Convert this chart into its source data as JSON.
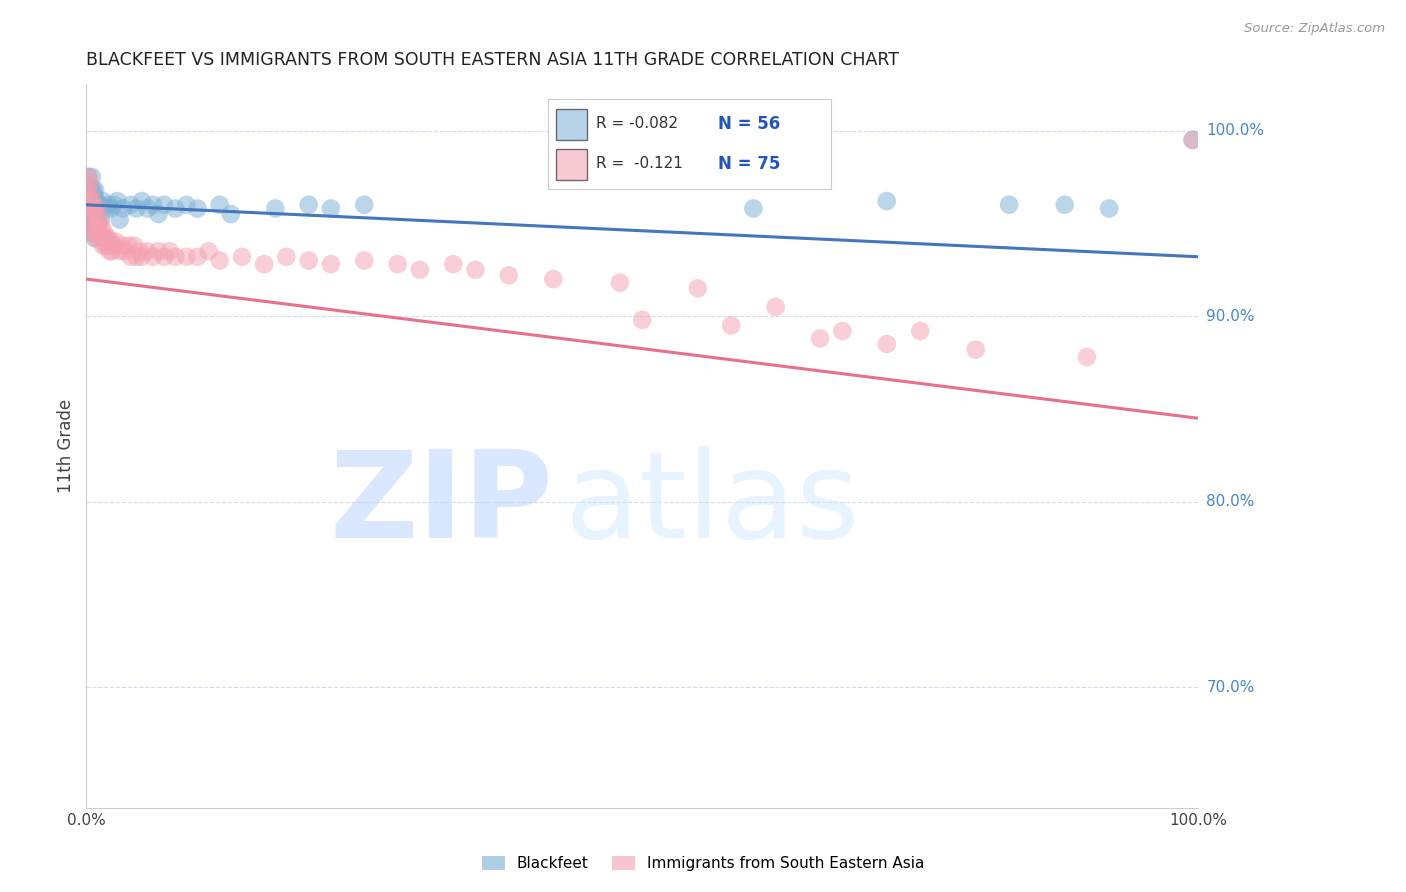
{
  "title": "BLACKFEET VS IMMIGRANTS FROM SOUTH EASTERN ASIA 11TH GRADE CORRELATION CHART",
  "source": "Source: ZipAtlas.com",
  "ylabel": "11th Grade",
  "ylabel_right_ticks": [
    "100.0%",
    "90.0%",
    "80.0%",
    "70.0%"
  ],
  "ylabel_right_tick_vals": [
    1.0,
    0.9,
    0.8,
    0.7
  ],
  "xmin": 0.0,
  "xmax": 1.0,
  "ymin": 0.635,
  "ymax": 1.025,
  "blue_R": -0.082,
  "blue_N": 56,
  "pink_R": -0.121,
  "pink_N": 75,
  "blue_color": "#7BAFD4",
  "pink_color": "#F4A0B0",
  "blue_line_color": "#4477BB",
  "pink_line_color": "#E8708A",
  "watermark_zip": "ZIP",
  "watermark_atlas": "atlas",
  "watermark_color": "#C8DEFF",
  "legend_label_blue": "Blackfeet",
  "legend_label_pink": "Immigrants from South Eastern Asia",
  "blue_line_y0": 0.96,
  "blue_line_y1": 0.932,
  "pink_line_y0": 0.92,
  "pink_line_y1": 0.845,
  "blue_x": [
    0.001,
    0.002,
    0.002,
    0.003,
    0.003,
    0.003,
    0.004,
    0.004,
    0.005,
    0.005,
    0.005,
    0.006,
    0.006,
    0.006,
    0.007,
    0.007,
    0.007,
    0.008,
    0.008,
    0.009,
    0.009,
    0.01,
    0.011,
    0.012,
    0.013,
    0.015,
    0.016,
    0.017,
    0.02,
    0.022,
    0.025,
    0.028,
    0.03,
    0.033,
    0.04,
    0.045,
    0.05,
    0.055,
    0.06,
    0.065,
    0.07,
    0.08,
    0.09,
    0.1,
    0.12,
    0.13,
    0.17,
    0.2,
    0.22,
    0.25,
    0.6,
    0.72,
    0.83,
    0.88,
    0.92,
    0.995
  ],
  "blue_y": [
    0.96,
    0.975,
    0.965,
    0.97,
    0.958,
    0.95,
    0.968,
    0.96,
    0.975,
    0.962,
    0.95,
    0.968,
    0.955,
    0.945,
    0.965,
    0.955,
    0.948,
    0.968,
    0.942,
    0.962,
    0.952,
    0.958,
    0.95,
    0.96,
    0.952,
    0.962,
    0.942,
    0.958,
    0.96,
    0.958,
    0.96,
    0.962,
    0.952,
    0.958,
    0.96,
    0.958,
    0.962,
    0.958,
    0.96,
    0.955,
    0.96,
    0.958,
    0.96,
    0.958,
    0.96,
    0.955,
    0.958,
    0.96,
    0.958,
    0.96,
    0.958,
    0.962,
    0.96,
    0.96,
    0.958,
    0.995
  ],
  "pink_x": [
    0.001,
    0.002,
    0.003,
    0.003,
    0.004,
    0.004,
    0.005,
    0.005,
    0.006,
    0.006,
    0.007,
    0.007,
    0.008,
    0.008,
    0.009,
    0.01,
    0.01,
    0.011,
    0.012,
    0.013,
    0.014,
    0.015,
    0.016,
    0.017,
    0.018,
    0.019,
    0.02,
    0.021,
    0.022,
    0.023,
    0.025,
    0.027,
    0.03,
    0.032,
    0.035,
    0.038,
    0.04,
    0.043,
    0.045,
    0.048,
    0.05,
    0.055,
    0.06,
    0.065,
    0.07,
    0.075,
    0.08,
    0.09,
    0.1,
    0.11,
    0.12,
    0.14,
    0.16,
    0.18,
    0.2,
    0.22,
    0.25,
    0.28,
    0.3,
    0.33,
    0.35,
    0.38,
    0.42,
    0.48,
    0.5,
    0.55,
    0.58,
    0.62,
    0.66,
    0.68,
    0.72,
    0.75,
    0.8,
    0.9,
    0.995
  ],
  "pink_y": [
    0.968,
    0.975,
    0.962,
    0.972,
    0.965,
    0.958,
    0.962,
    0.952,
    0.958,
    0.948,
    0.958,
    0.945,
    0.955,
    0.942,
    0.95,
    0.958,
    0.948,
    0.945,
    0.952,
    0.942,
    0.948,
    0.938,
    0.945,
    0.938,
    0.942,
    0.938,
    0.942,
    0.935,
    0.94,
    0.935,
    0.938,
    0.94,
    0.935,
    0.938,
    0.935,
    0.938,
    0.932,
    0.938,
    0.932,
    0.935,
    0.932,
    0.935,
    0.932,
    0.935,
    0.932,
    0.935,
    0.932,
    0.932,
    0.932,
    0.935,
    0.93,
    0.932,
    0.928,
    0.932,
    0.93,
    0.928,
    0.93,
    0.928,
    0.925,
    0.928,
    0.925,
    0.922,
    0.92,
    0.918,
    0.898,
    0.915,
    0.895,
    0.905,
    0.888,
    0.892,
    0.885,
    0.892,
    0.882,
    0.878,
    0.995
  ]
}
